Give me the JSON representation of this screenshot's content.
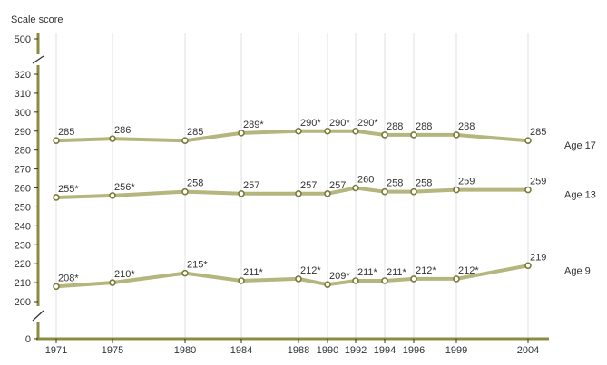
{
  "chart_data": {
    "type": "line",
    "ylabel": "Scale score",
    "x": [
      "1971",
      "1975",
      "1980",
      "1984",
      "1988",
      "1990",
      "1992",
      "1994",
      "1996",
      "1999",
      "2004"
    ],
    "y_ticks": [
      "0",
      "200",
      "210",
      "220",
      "230",
      "240",
      "250",
      "260",
      "270",
      "280",
      "290",
      "300",
      "310",
      "320",
      "500"
    ],
    "y_axis_break": true,
    "grid": "vertical",
    "series": [
      {
        "name": "Age 17",
        "values": [
          285,
          286,
          285,
          289,
          290,
          290,
          290,
          288,
          288,
          288,
          285
        ],
        "labels": [
          "285",
          "286",
          "285",
          "289*",
          "290*",
          "290*",
          "290*",
          "288",
          "288",
          "288",
          "285"
        ]
      },
      {
        "name": "Age 13",
        "values": [
          255,
          256,
          258,
          257,
          257,
          257,
          260,
          258,
          258,
          259,
          259
        ],
        "labels": [
          "255*",
          "256*",
          "258",
          "257",
          "257",
          "257",
          "260",
          "258",
          "258",
          "259",
          "259"
        ]
      },
      {
        "name": "Age 9",
        "values": [
          208,
          210,
          215,
          211,
          212,
          209,
          211,
          211,
          212,
          212,
          219
        ],
        "labels": [
          "208*",
          "210*",
          "215*",
          "211*",
          "212*",
          "209*",
          "211*",
          "211*",
          "212*",
          "212*",
          "219"
        ]
      }
    ],
    "colors": {
      "line": "#b5b57e",
      "marker_stroke": "#7a7a3a",
      "axis": "#8c8c40",
      "grid": "#e2e2e2"
    }
  }
}
